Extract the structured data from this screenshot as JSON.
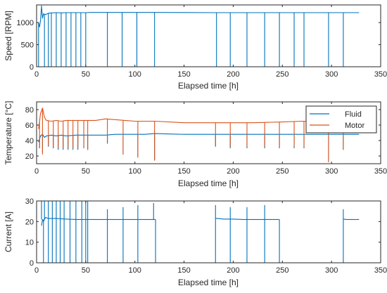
{
  "chart_data": [
    {
      "id": "speed",
      "type": "line",
      "xlabel": "Elapsed time [h]",
      "ylabel": "Speed [RPM]",
      "xlim": [
        0,
        350
      ],
      "ylim": [
        0,
        1400
      ],
      "xticks": [
        0,
        50,
        100,
        150,
        200,
        250,
        300,
        350
      ],
      "yticks": [
        0,
        500,
        1000
      ],
      "grid": false,
      "legend": null,
      "base_color": "#0072BD",
      "series": [
        {
          "color": "#0072BD",
          "x": [
            2,
            3,
            4,
            5,
            5.5,
            6,
            7,
            9,
            12,
            15,
            20,
            22,
            25,
            27,
            30,
            32,
            35,
            37,
            40,
            42,
            45,
            47,
            50,
            52,
            55,
            70,
            72,
            75,
            85,
            87,
            90,
            100,
            102,
            105,
            118,
            120,
            122,
            150,
            181,
            183,
            185,
            195,
            197,
            200,
            212,
            214,
            217,
            230,
            232,
            235,
            245,
            247,
            250,
            260,
            262,
            265,
            270,
            272,
            275,
            295,
            297,
            300,
            310,
            312,
            315,
            328
          ],
          "y": [
            1000,
            900,
            1050,
            1380,
            0,
            1100,
            1200,
            1180,
            1210,
            1220,
            1225,
            0,
            1220,
            0,
            1225,
            0,
            1225,
            0,
            1225,
            0,
            1225,
            0,
            1225,
            0,
            1230,
            1230,
            0,
            1230,
            1230,
            0,
            1230,
            1230,
            0,
            1230,
            1230,
            0,
            1230,
            1228,
            1225,
            0,
            1225,
            1225,
            0,
            1225,
            1225,
            0,
            1225,
            1225,
            0,
            1225,
            1225,
            0,
            1225,
            1225,
            0,
            1225,
            1225,
            0,
            1225,
            1225,
            0,
            1225,
            1225,
            0,
            1225,
            1225
          ],
          "dips": [
            [
              2,
              0
            ],
            [
              8,
              0
            ],
            [
              12,
              0
            ],
            [
              15,
              0
            ],
            [
              20,
              0
            ],
            [
              25,
              0
            ],
            [
              30,
              0
            ],
            [
              35,
              0
            ],
            [
              40,
              0
            ],
            [
              45,
              0
            ],
            [
              50,
              0
            ],
            [
              72,
              0
            ],
            [
              87,
              0
            ],
            [
              102,
              0
            ],
            [
              120,
              0
            ],
            [
              183,
              0
            ],
            [
              197,
              0
            ],
            [
              214,
              0
            ],
            [
              232,
              0
            ],
            [
              247,
              0
            ],
            [
              262,
              0
            ],
            [
              272,
              0
            ],
            [
              297,
              0
            ],
            [
              312,
              0
            ]
          ]
        }
      ]
    },
    {
      "id": "temperature",
      "type": "line",
      "xlabel": "Elapsed time [h]",
      "ylabel": "Temperature [°C]",
      "xlim": [
        0,
        350
      ],
      "ylim": [
        10,
        90
      ],
      "xticks": [
        0,
        50,
        100,
        150,
        200,
        250,
        300,
        350
      ],
      "yticks": [
        20,
        40,
        60,
        80
      ],
      "grid": false,
      "legend": "top-right",
      "series": [
        {
          "name": "Fluid",
          "color": "#0072BD",
          "x": [
            2,
            4,
            6,
            8,
            10,
            15,
            20,
            25,
            30,
            40,
            50,
            60,
            70,
            80,
            90,
            100,
            110,
            120,
            150,
            180,
            200,
            220,
            250,
            270,
            300,
            328
          ],
          "y": [
            38,
            46,
            48,
            44,
            46,
            47,
            46,
            47,
            46,
            47,
            47,
            47,
            47,
            48,
            48,
            48,
            48,
            49,
            48,
            48,
            48,
            48,
            48,
            48,
            48,
            48
          ],
          "dips": [
            [
              3,
              30
            ],
            [
              6,
              25
            ],
            [
              12,
              32
            ],
            [
              17,
              30
            ],
            [
              22,
              28
            ],
            [
              27,
              28
            ],
            [
              32,
              28
            ],
            [
              37,
              28
            ],
            [
              42,
              28
            ],
            [
              48,
              30
            ],
            [
              52,
              28
            ],
            [
              72,
              36
            ],
            [
              88,
              22
            ],
            [
              103,
              18
            ],
            [
              120,
              15
            ],
            [
              182,
              32
            ],
            [
              197,
              30
            ],
            [
              214,
              30
            ],
            [
              232,
              30
            ],
            [
              247,
              30
            ],
            [
              262,
              30
            ],
            [
              272,
              30
            ],
            [
              297,
              12
            ],
            [
              312,
              28
            ]
          ]
        },
        {
          "name": "Motor",
          "color": "#D95319",
          "x": [
            2,
            4,
            6,
            8,
            10,
            15,
            20,
            25,
            30,
            40,
            50,
            60,
            70,
            80,
            90,
            100,
            110,
            120,
            150,
            180,
            200,
            220,
            250,
            270,
            300,
            328
          ],
          "y": [
            55,
            75,
            82,
            70,
            66,
            65,
            66,
            65,
            66,
            66,
            66,
            66,
            68,
            67,
            66,
            65,
            65,
            65,
            63,
            63,
            63,
            63,
            64,
            65,
            64,
            64
          ],
          "dips": [
            [
              3,
              30
            ],
            [
              6,
              22
            ],
            [
              12,
              33
            ],
            [
              17,
              30
            ],
            [
              22,
              30
            ],
            [
              27,
              30
            ],
            [
              32,
              30
            ],
            [
              37,
              30
            ],
            [
              42,
              30
            ],
            [
              48,
              30
            ],
            [
              52,
              28
            ],
            [
              72,
              40
            ],
            [
              88,
              22
            ],
            [
              103,
              18
            ],
            [
              120,
              14
            ],
            [
              182,
              33
            ],
            [
              197,
              32
            ],
            [
              214,
              32
            ],
            [
              232,
              32
            ],
            [
              247,
              32
            ],
            [
              262,
              32
            ],
            [
              272,
              32
            ],
            [
              297,
              12
            ],
            [
              312,
              28
            ]
          ]
        }
      ]
    },
    {
      "id": "current",
      "type": "line",
      "xlabel": "Elapsed time [h]",
      "ylabel": "Current [A]",
      "xlim": [
        0,
        350
      ],
      "ylim": [
        0,
        30
      ],
      "xticks": [
        0,
        50,
        100,
        150,
        200,
        250,
        300,
        350
      ],
      "yticks": [
        0,
        10,
        20,
        30
      ],
      "grid": false,
      "legend": null,
      "series": [
        {
          "color": "#0072BD",
          "segments": [
            {
              "x": [
                5,
                6,
                7,
                9,
                12,
                20,
                30,
                40,
                50,
                60,
                70,
                80,
                90,
                100,
                110,
                120,
                121
              ],
              "y": [
                18,
                21,
                20,
                22,
                21.5,
                21.5,
                21.2,
                21,
                21,
                21,
                21,
                21,
                21,
                21,
                21,
                21,
                21
              ]
            },
            {
              "x": [
                182,
                185,
                190,
                200,
                210,
                220,
                230,
                240,
                247
              ],
              "y": [
                21.5,
                21.5,
                21.2,
                21.2,
                21,
                21,
                21,
                21,
                21
              ]
            },
            {
              "x": [
                312,
                315,
                320,
                328
              ],
              "y": [
                21.2,
                21,
                21,
                21
              ]
            }
          ],
          "spikes": [
            [
              5,
              30
            ],
            [
              8,
              30
            ],
            [
              12,
              30
            ],
            [
              16,
              30
            ],
            [
              20,
              30
            ],
            [
              24,
              30
            ],
            [
              28,
              30
            ],
            [
              34,
              30
            ],
            [
              40,
              30
            ],
            [
              46,
              30
            ],
            [
              50,
              30
            ],
            [
              52,
              30
            ],
            [
              72,
              26
            ],
            [
              88,
              27
            ],
            [
              103,
              28
            ],
            [
              119,
              29
            ],
            [
              182,
              28
            ],
            [
              197,
              27
            ],
            [
              214,
              27
            ],
            [
              232,
              28
            ],
            [
              312,
              26
            ]
          ],
          "dips": [
            [
              7,
              0
            ],
            [
              12,
              0
            ],
            [
              16,
              0
            ],
            [
              20,
              0
            ],
            [
              24,
              0
            ],
            [
              28,
              0
            ],
            [
              34,
              0
            ],
            [
              40,
              0
            ],
            [
              46,
              0
            ],
            [
              50,
              0
            ],
            [
              52,
              0
            ],
            [
              72,
              0
            ],
            [
              88,
              0
            ],
            [
              103,
              0
            ],
            [
              121,
              0
            ],
            [
              182,
              0
            ],
            [
              197,
              0
            ],
            [
              214,
              0
            ],
            [
              232,
              0
            ],
            [
              247,
              0
            ],
            [
              312,
              0
            ]
          ]
        }
      ]
    }
  ]
}
